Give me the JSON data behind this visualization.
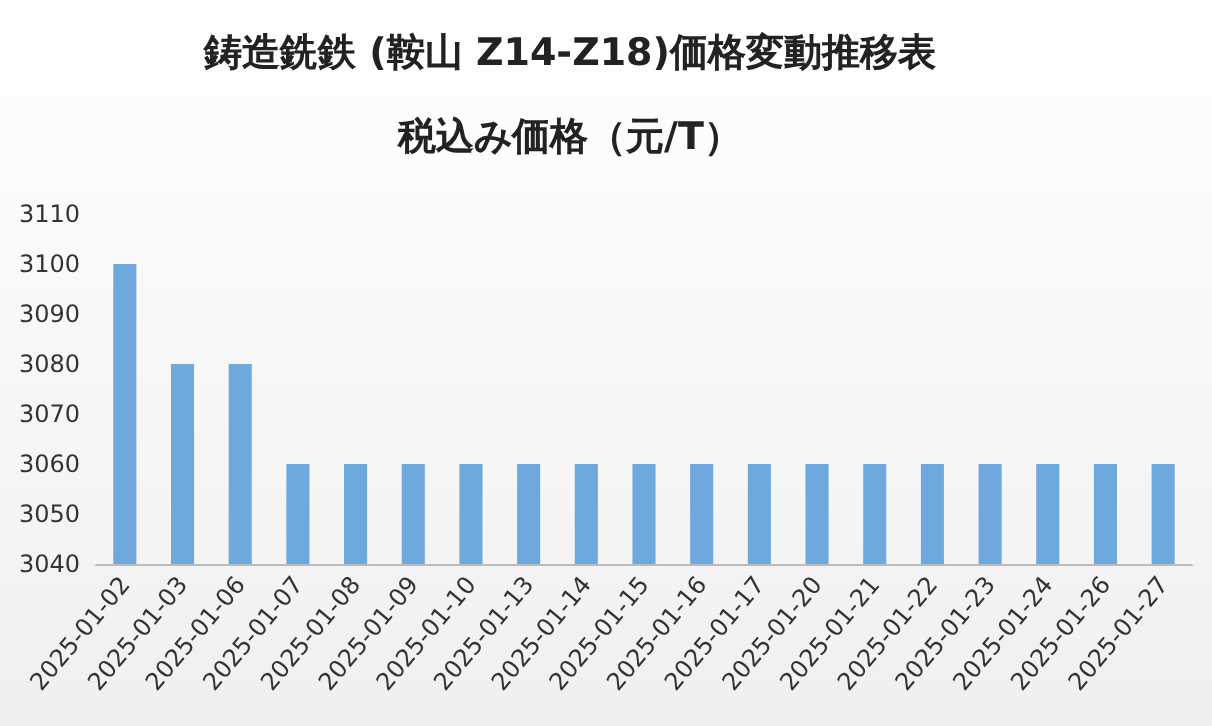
{
  "chart_data": {
    "type": "bar",
    "title": "鋳造銑鉄 (鞍山 Z14-Z18)価格変動推移表",
    "subtitle": "税込み価格（元/T）",
    "categories": [
      "2025-01-02",
      "2025-01-03",
      "2025-01-06",
      "2025-01-07",
      "2025-01-08",
      "2025-01-09",
      "2025-01-10",
      "2025-01-13",
      "2025-01-14",
      "2025-01-15",
      "2025-01-16",
      "2025-01-17",
      "2025-01-20",
      "2025-01-21",
      "2025-01-22",
      "2025-01-23",
      "2025-01-24",
      "2025-01-26",
      "2025-01-27"
    ],
    "values": [
      3100,
      3080,
      3080,
      3060,
      3060,
      3060,
      3060,
      3060,
      3060,
      3060,
      3060,
      3060,
      3060,
      3060,
      3060,
      3060,
      3060,
      3060,
      3060
    ],
    "color": "#6fa8dc",
    "ylim": [
      3040,
      3110
    ],
    "yticks": [
      3040,
      3050,
      3060,
      3070,
      3080,
      3090,
      3100,
      3110
    ],
    "grid": false
  }
}
